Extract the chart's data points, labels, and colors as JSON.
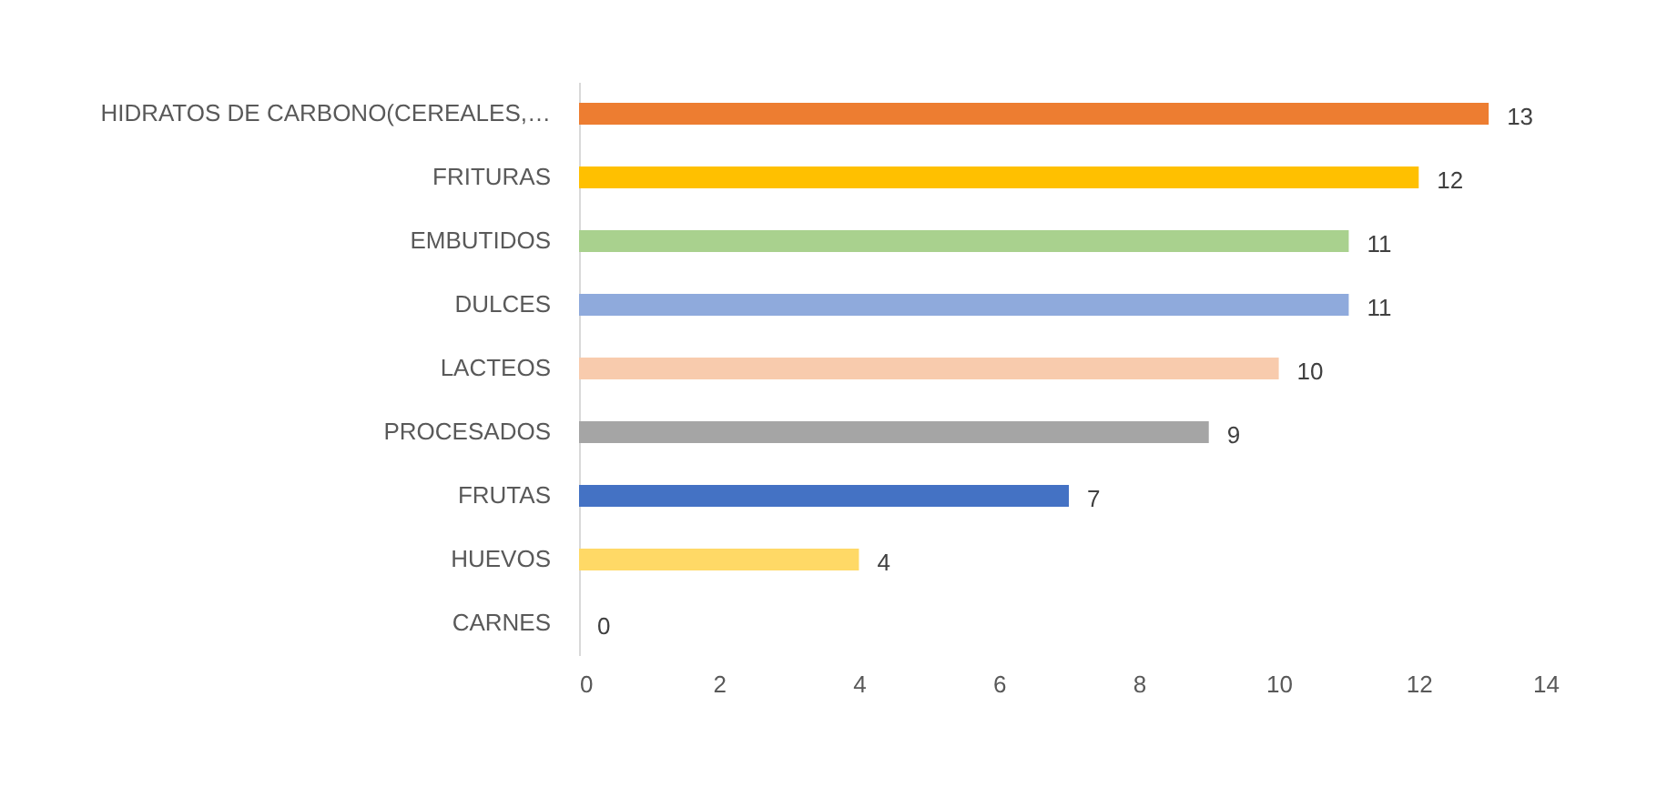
{
  "chart_data": {
    "type": "bar",
    "orientation": "horizontal",
    "categories": [
      "HIDRATOS DE CARBONO(CEREALES,…",
      "FRITURAS",
      "EMBUTIDOS",
      "DULCES",
      "LACTEOS",
      "PROCESADOS",
      "FRUTAS",
      "HUEVOS",
      "CARNES"
    ],
    "values": [
      13,
      12,
      11,
      11,
      10,
      9,
      7,
      4,
      0
    ],
    "colors": [
      "#ed7d31",
      "#ffc000",
      "#a9d18e",
      "#8faadc",
      "#f8cbad",
      "#a5a5a5",
      "#4472c4",
      "#ffd966",
      "#5b9bd5"
    ],
    "xlim": [
      0,
      14
    ],
    "xticks": [
      0,
      2,
      4,
      6,
      8,
      10,
      12,
      14
    ],
    "data_labels": true,
    "grid": false
  }
}
